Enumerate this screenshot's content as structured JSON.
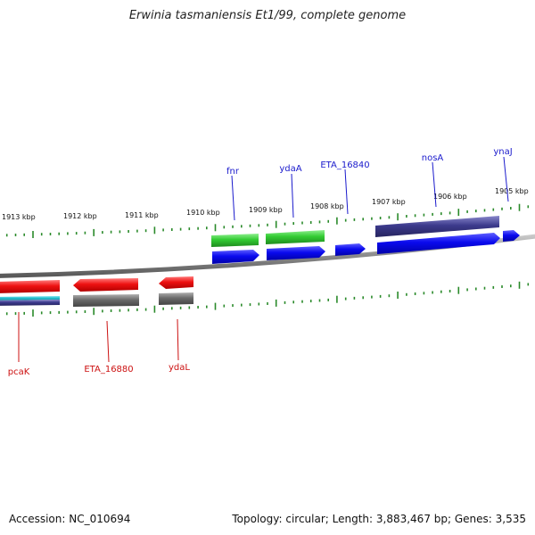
{
  "title": "Erwinia tasmaniensis Et1/99, complete genome",
  "footer": {
    "accession": "Accession: NC_010694",
    "stats": "Topology: circular; Length: 3,883,467 bp; Genes: 3,535"
  },
  "colors": {
    "background": "#ffffff",
    "backbone": "#8a8a8a",
    "tick": "#2a8a2a",
    "forward_label": "#1a1acc",
    "reverse_label": "#cc1111",
    "gene_red": "#ee1111",
    "gene_green": "#33cc33",
    "gene_blue": "#0a0aee",
    "gene_navy": "#3c3a8c",
    "gene_gray": "#6a6a6a",
    "gene_cyan": "#22bbcc"
  },
  "ticks": [
    "1913 kbp",
    "1912 kbp",
    "1911 kbp",
    "1910 kbp",
    "1909 kbp",
    "1908 kbp",
    "1907 kbp",
    "1906 kbp",
    "1905 kbp"
  ],
  "forward_labels": [
    "fnr",
    "ydaA",
    "ETA_16840",
    "nosA",
    "ynaJ"
  ],
  "reverse_labels": [
    "pcaK",
    "ETA_16880",
    "ydaL"
  ]
}
